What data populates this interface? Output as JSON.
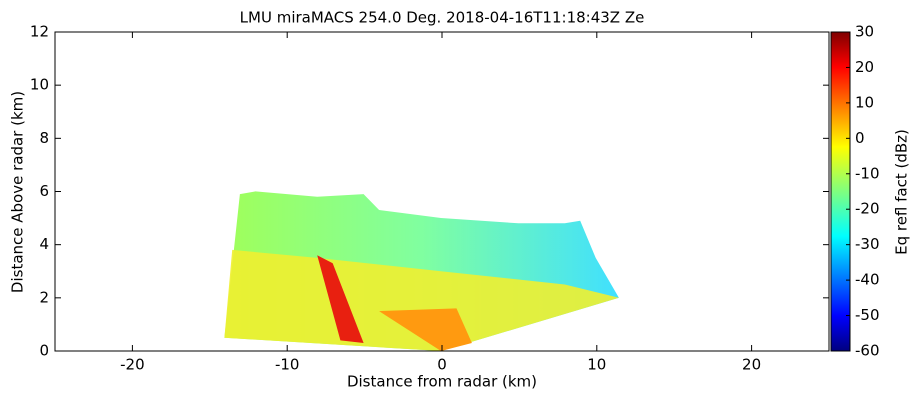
{
  "chart_data": {
    "type": "rhi",
    "title": "LMU miraMACS 254.0 Deg. 2018-04-16T11:18:43Z  Ze",
    "xlabel": "Distance from radar (km)",
    "ylabel": "Distance Above radar  (km)",
    "xlim": [
      -25,
      25
    ],
    "xticks": [
      -20,
      -10,
      0,
      10,
      20
    ],
    "ylim": [
      0,
      12
    ],
    "yticks": [
      0,
      2,
      4,
      6,
      8,
      10,
      12
    ],
    "colorbar": {
      "label": "Eq refl fact (dBz)",
      "lim": [
        -60,
        30
      ],
      "ticks": [
        -60,
        -50,
        -40,
        -30,
        -20,
        -10,
        0,
        10,
        20,
        30
      ]
    }
  }
}
